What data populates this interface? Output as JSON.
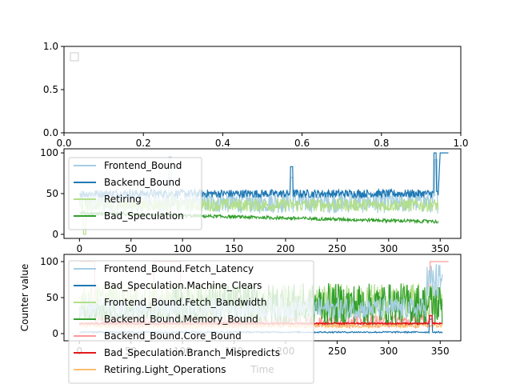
{
  "chart_data": [
    {
      "type": "line",
      "xlim": [
        0.0,
        1.0
      ],
      "ylim": [
        0.0,
        1.0
      ],
      "xticks": [
        "0.0",
        "0.2",
        "0.4",
        "0.6",
        "0.8",
        "1.0"
      ],
      "yticks": [
        "0.0",
        "0.5",
        "1.0"
      ],
      "series": [],
      "legend": "top-left"
    },
    {
      "type": "line",
      "xlim": [
        -15,
        370
      ],
      "ylim": [
        -5,
        105
      ],
      "xticks": [
        "0",
        "50",
        "100",
        "150",
        "200",
        "250",
        "300",
        "350"
      ],
      "yticks": [
        "0",
        "50",
        "100"
      ],
      "legend": "top-left",
      "series": [
        {
          "name": "Frontend_Bound",
          "color": "#a6cee3",
          "baseline": 40,
          "noise": 14,
          "spikes": [
            [
              88,
              95
            ],
            [
              206,
              70
            ],
            [
              346,
              92
            ]
          ]
        },
        {
          "name": "Backend_Bound",
          "color": "#1f78b4",
          "baseline": 50,
          "noise": 5,
          "spikes": [
            [
              206,
              83
            ],
            [
              345,
              100
            ],
            [
              350,
              100
            ],
            [
              358,
              100
            ]
          ]
        },
        {
          "name": "Retiring",
          "color": "#b2df8a",
          "baseline": 36,
          "noise": 8,
          "spikes": [
            [
              5,
              0
            ],
            [
              90,
              50
            ]
          ]
        },
        {
          "name": "Bad_Speculation",
          "color": "#33a02c",
          "baseline": 26,
          "noise": 2,
          "spikes": [
            [
              340,
              17
            ]
          ]
        }
      ]
    },
    {
      "type": "line",
      "xlim": [
        -15,
        370
      ],
      "ylim": [
        -10,
        110
      ],
      "xticks": [
        "0",
        "50",
        "100",
        "150",
        "200",
        "250",
        "300",
        "350"
      ],
      "yticks": [
        "0",
        "50",
        "100"
      ],
      "xlabel": "Time",
      "ylabel": "Counter value",
      "legend": "top-left",
      "series": [
        {
          "name": "Frontend_Bound.Fetch_Latency",
          "color": "#a6cee3"
        },
        {
          "name": "Bad_Speculation.Machine_Clears",
          "color": "#1f78b4"
        },
        {
          "name": "Frontend_Bound.Fetch_Bandwidth",
          "color": "#b2df8a"
        },
        {
          "name": "Backend_Bound.Memory_Bound",
          "color": "#33a02c"
        },
        {
          "name": "Backend_Bound.Core_Bound",
          "color": "#fb9a99"
        },
        {
          "name": "Bad_Speculation.Branch_Mispredicts",
          "color": "#e31a1c"
        },
        {
          "name": "Retiring.Light_Operations",
          "color": "#fdbf6f"
        }
      ]
    }
  ]
}
